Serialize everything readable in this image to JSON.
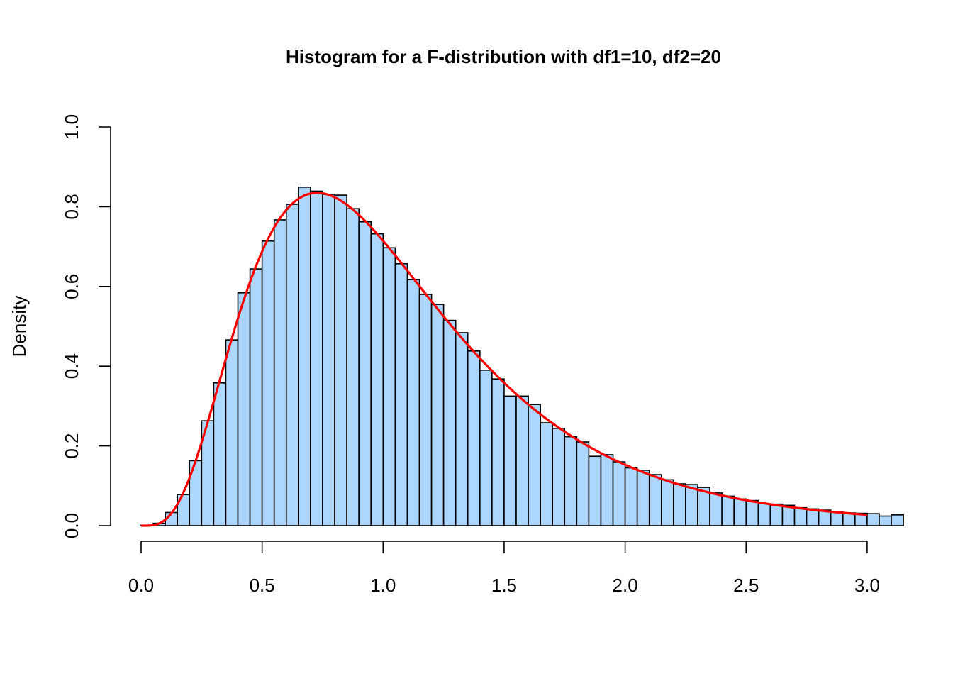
{
  "chart_data": {
    "type": "bar",
    "title": "Histogram for a F-distribution with df1=10, df2=20",
    "xlabel": "",
    "ylabel": "Density",
    "xlim": [
      0.0,
      3.12
    ],
    "ylim": [
      0.0,
      1.0
    ],
    "x_ticks": [
      "0.0",
      "0.5",
      "1.0",
      "1.5",
      "2.0",
      "2.5",
      "3.0"
    ],
    "y_ticks": [
      "0.0",
      "0.2",
      "0.4",
      "0.6",
      "0.8",
      "1.0"
    ],
    "bin_width": 0.05,
    "bin_start": 0.0,
    "values": [
      0.001,
      0.006,
      0.033,
      0.078,
      0.163,
      0.263,
      0.358,
      0.466,
      0.584,
      0.644,
      0.714,
      0.767,
      0.806,
      0.849,
      0.839,
      0.831,
      0.829,
      0.795,
      0.762,
      0.732,
      0.697,
      0.657,
      0.617,
      0.58,
      0.555,
      0.515,
      0.484,
      0.438,
      0.39,
      0.368,
      0.325,
      0.325,
      0.304,
      0.258,
      0.244,
      0.223,
      0.21,
      0.174,
      0.178,
      0.16,
      0.145,
      0.139,
      0.128,
      0.115,
      0.105,
      0.103,
      0.096,
      0.082,
      0.074,
      0.067,
      0.063,
      0.055,
      0.054,
      0.051,
      0.045,
      0.042,
      0.039,
      0.035,
      0.032,
      0.031,
      0.03,
      0.024,
      0.027
    ],
    "density_curve": {
      "df1": 10,
      "df2": 20,
      "x_range": [
        0.0,
        3.0
      ]
    },
    "colors": {
      "bar_fill": "#acd6fb",
      "bar_stroke": "#000000",
      "curve": "#ff0000",
      "axis": "#000000"
    }
  }
}
